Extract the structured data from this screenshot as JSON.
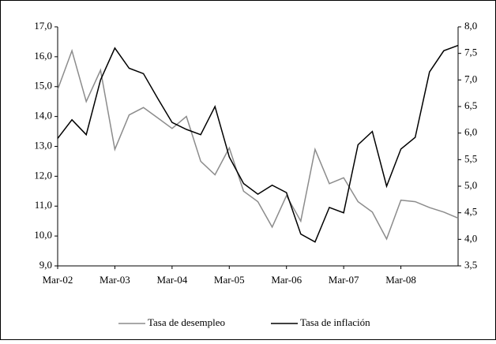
{
  "chart_data": {
    "type": "line",
    "categories": [
      "Mar-02",
      null,
      null,
      null,
      "Mar-03",
      null,
      null,
      null,
      "Mar-04",
      null,
      null,
      null,
      "Mar-05",
      null,
      null,
      null,
      "Mar-06",
      null,
      null,
      null,
      "Mar-07",
      null,
      null,
      null,
      "Mar-08",
      null,
      null,
      null,
      null
    ],
    "series": [
      {
        "name": "Tasa de desempleo",
        "color": "#8c8c8c",
        "axis": "y",
        "values": [
          14.9,
          16.2,
          14.5,
          15.55,
          12.9,
          14.05,
          14.3,
          13.95,
          13.6,
          14.0,
          12.5,
          12.05,
          12.95,
          11.5,
          11.15,
          10.3,
          11.35,
          10.5,
          12.9,
          11.75,
          11.95,
          11.15,
          10.8,
          9.9,
          11.2,
          11.15,
          10.95,
          10.8,
          10.6
        ]
      },
      {
        "name": "Tasa de inflación",
        "color": "#000000",
        "axis": "y2",
        "values": [
          5.9,
          6.25,
          5.97,
          7.0,
          7.6,
          7.22,
          7.12,
          6.65,
          6.2,
          6.07,
          5.97,
          6.5,
          5.55,
          5.05,
          4.85,
          5.02,
          4.88,
          4.1,
          3.95,
          4.6,
          4.5,
          5.78,
          6.03,
          5.0,
          5.7,
          5.92,
          7.15,
          7.55,
          7.65
        ]
      }
    ],
    "ylim": [
      9,
      17
    ],
    "yticks": [
      {
        "value": 9,
        "label": "9,0"
      },
      {
        "value": 10,
        "label": "10,0"
      },
      {
        "value": 11,
        "label": "11,0"
      },
      {
        "value": 12,
        "label": "12,0"
      },
      {
        "value": 13,
        "label": "13,0"
      },
      {
        "value": 14,
        "label": "14,0"
      },
      {
        "value": 15,
        "label": "15,0"
      },
      {
        "value": 16,
        "label": "16,0"
      },
      {
        "value": 17,
        "label": "17,0"
      }
    ],
    "y2lim": [
      3.5,
      8
    ],
    "y2ticks": [
      {
        "value": 3.5,
        "label": "3,5"
      },
      {
        "value": 4,
        "label": "4,0"
      },
      {
        "value": 4.5,
        "label": "4,5"
      },
      {
        "value": 5,
        "label": "5,0"
      },
      {
        "value": 5.5,
        "label": "5,5"
      },
      {
        "value": 6,
        "label": "6,0"
      },
      {
        "value": 6.5,
        "label": "6,5"
      },
      {
        "value": 7,
        "label": "7,0"
      },
      {
        "value": 7.5,
        "label": "7,5"
      },
      {
        "value": 8,
        "label": "8,0"
      }
    ],
    "legend": "bottom"
  }
}
